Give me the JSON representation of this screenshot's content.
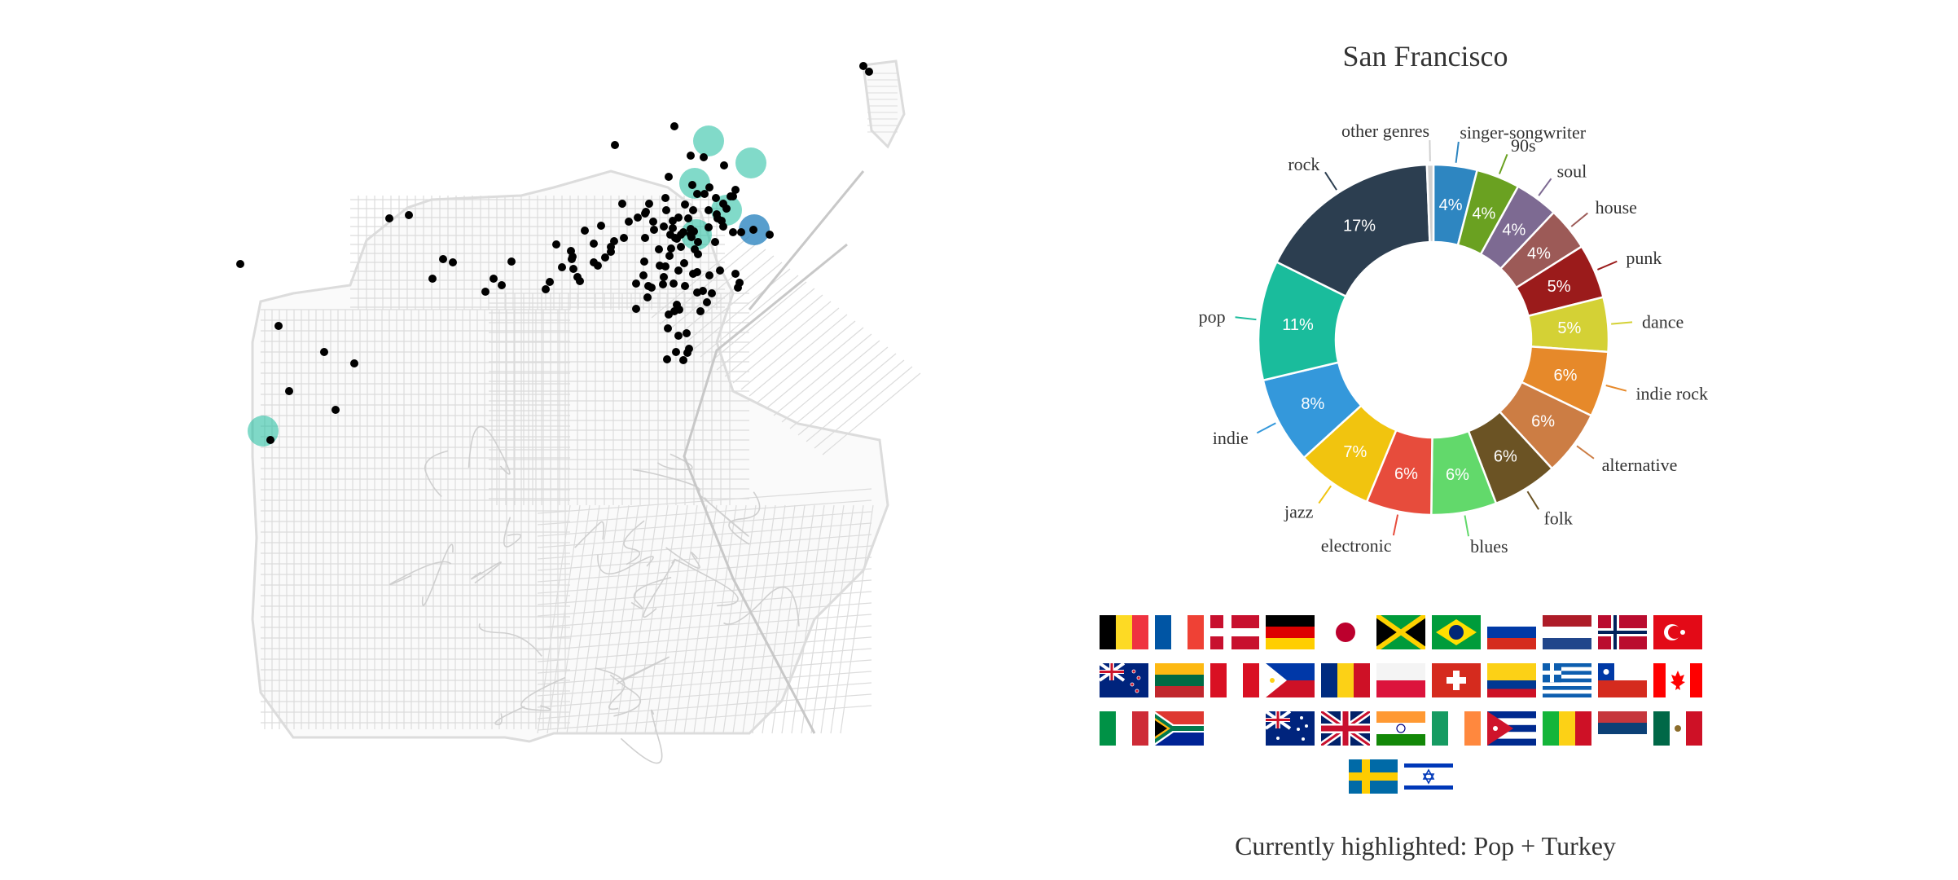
{
  "title": "San Francisco",
  "highlight_text": "Currently highlighted: Pop + Turkey",
  "colors": {
    "street": "#dcdcdc",
    "point": "#000000",
    "highlight_pop": "#1abc9c",
    "highlight_indie": "#2e86c1"
  },
  "map": {
    "points_description": "venue locations",
    "highlights": [
      "pop",
      "indie"
    ]
  },
  "chart_data": {
    "type": "pie",
    "donut": true,
    "title": "San Francisco",
    "slices": [
      {
        "label": "singer-songwriter",
        "value": 4,
        "display": "4%",
        "color": "#2e86c1"
      },
      {
        "label": "90s",
        "value": 4,
        "display": "4%",
        "color": "#6aa121"
      },
      {
        "label": "soul",
        "value": 4,
        "display": "4%",
        "color": "#7d6a92"
      },
      {
        "label": "house",
        "value": 4,
        "display": "4%",
        "color": "#9c5a57"
      },
      {
        "label": "punk",
        "value": 5,
        "display": "5%",
        "color": "#9b1b1b"
      },
      {
        "label": "dance",
        "value": 5,
        "display": "5%",
        "color": "#d4d135"
      },
      {
        "label": "indie rock",
        "value": 6,
        "display": "6%",
        "color": "#e6892a"
      },
      {
        "label": "alternative",
        "value": 6,
        "display": "6%",
        "color": "#cc7d44"
      },
      {
        "label": "folk",
        "value": 6,
        "display": "6%",
        "color": "#6b5324"
      },
      {
        "label": "blues",
        "value": 6,
        "display": "6%",
        "color": "#62d96b"
      },
      {
        "label": "electronic",
        "value": 6,
        "display": "6%",
        "color": "#e74c3c"
      },
      {
        "label": "jazz",
        "value": 7,
        "display": "7%",
        "color": "#f1c40f"
      },
      {
        "label": "indie",
        "value": 8,
        "display": "8%",
        "color": "#3498db"
      },
      {
        "label": "pop",
        "value": 11,
        "display": "11%",
        "color": "#1abc9c"
      },
      {
        "label": "rock",
        "value": 17,
        "display": "17%",
        "color": "#2c3e50"
      },
      {
        "label": "other genres",
        "value": 0.6,
        "display": "",
        "color": "#cfcfcf"
      }
    ]
  },
  "flags": [
    [
      "belgium-flag",
      "france-flag",
      "denmark-flag",
      "germany-flag",
      "japan-flag",
      "jamaica-flag",
      "brazil-flag",
      "russia-flag",
      "netherlands-flag",
      "norway-flag",
      "turkey-flag"
    ],
    [
      "new-zealand-flag",
      "lithuania-flag",
      "peru-flag",
      "philippines-flag",
      "romania-flag",
      "poland-flag",
      "switzerland-flag",
      "colombia-flag",
      "greece-flag",
      "chile-flag",
      "canada-flag"
    ],
    [
      "italy-flag",
      "south-africa-flag",
      "blank-flag",
      "australia-flag",
      "uk-flag",
      "india-flag",
      "ireland-flag",
      "cuba-flag",
      "mali-flag",
      "serbia-flag",
      "mexico-flag"
    ],
    [
      "sweden-flag",
      "israel-flag"
    ]
  ]
}
